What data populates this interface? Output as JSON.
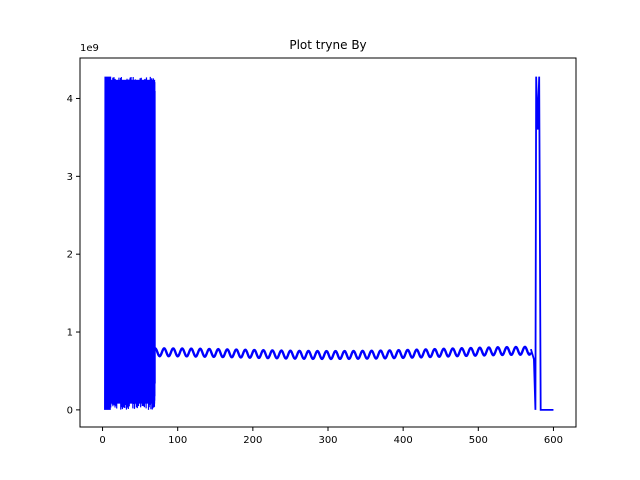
{
  "chart_data": {
    "type": "line",
    "title": "Plot tryne By",
    "xlabel": "",
    "ylabel": "",
    "y_offset_label": "1e9",
    "xlim": [
      -30,
      630
    ],
    "ylim": [
      -0.22,
      4.52
    ],
    "y_scale_factor": 1000000000,
    "x_ticks": [
      0,
      100,
      200,
      300,
      400,
      500,
      600
    ],
    "y_ticks": [
      0,
      1,
      2,
      3,
      4
    ],
    "grid": false,
    "legend": "none",
    "series": [
      {
        "color": "#0000ff",
        "segments": [
          {
            "kind": "dense-band",
            "x_range": [
              10,
              70
            ],
            "low_band": [
              0.0,
              0.38
            ],
            "high_band": [
              3.9,
              4.28
            ]
          },
          {
            "kind": "spikes",
            "x": [
              3,
              4,
              5,
              6,
              7,
              8,
              9,
              10
            ],
            "low": 0.0,
            "high": 4.28
          },
          {
            "kind": "oscillation",
            "x_range": [
              67,
              570
            ],
            "center": 0.72,
            "amplitude": 0.05,
            "period": 12,
            "start_peak": 0.84,
            "end_peak": 0.82
          },
          {
            "kind": "line",
            "points": [
              [
                570,
                0.78
              ],
              [
                574,
                0.65
              ],
              [
                576,
                0.0
              ],
              [
                577,
                4.28
              ],
              [
                579,
                3.6
              ],
              [
                581,
                4.28
              ],
              [
                583,
                0.0
              ],
              [
                590,
                0.0
              ],
              [
                600,
                0.0
              ]
            ]
          }
        ]
      }
    ]
  }
}
